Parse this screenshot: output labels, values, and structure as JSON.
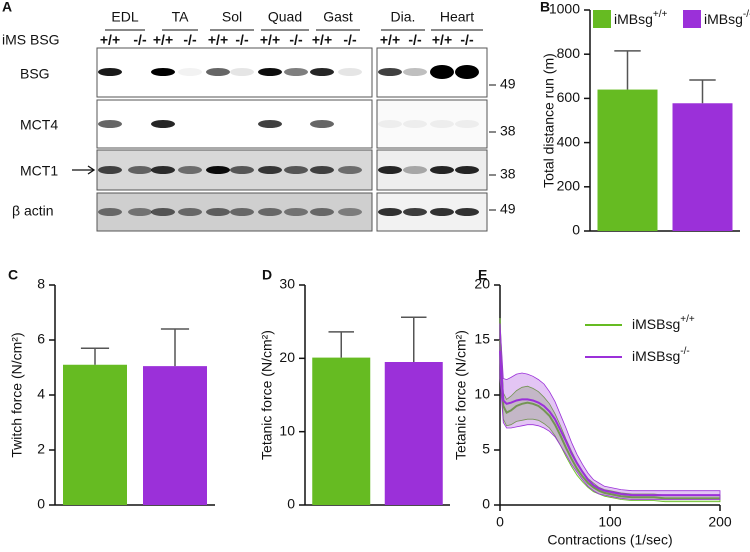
{
  "panel_labels": [
    "A",
    "B",
    "C",
    "D",
    "E"
  ],
  "blot": {
    "genotype_label": "iMS BSG",
    "genotypes": [
      "+/+",
      "-/-"
    ],
    "groups": [
      "EDL",
      "TA",
      "Sol",
      "Quad",
      "Gast",
      "Dia.",
      "Heart"
    ],
    "rows": [
      {
        "name": "BSG",
        "mw": "49"
      },
      {
        "name": "MCT4",
        "mw": "38"
      },
      {
        "name": "MCT1",
        "mw": "38"
      },
      {
        "name": "β actin",
        "mw": "49"
      }
    ]
  },
  "chart_data": [
    {
      "type": "bar",
      "ylabel": "Total distance run (m)",
      "ylim": [
        0,
        1000
      ],
      "yticks": [
        0,
        200,
        400,
        600,
        800,
        1000
      ],
      "series": [
        {
          "name": "iMBsg+/+",
          "color": "#66bb22",
          "values": [
            640
          ],
          "error": [
            175
          ]
        },
        {
          "name": "iMBsg-/-",
          "color": "#9b30d9",
          "values": [
            578
          ],
          "error": [
            105
          ]
        }
      ]
    },
    {
      "type": "bar",
      "ylabel": "Twitch force (N/cm²)",
      "ylim": [
        0,
        8
      ],
      "yticks": [
        0,
        2,
        4,
        6,
        8
      ],
      "values": [
        5.1,
        5.05
      ],
      "errors": [
        0.6,
        1.35
      ],
      "colors": [
        "#66bb22",
        "#9b30d9"
      ]
    },
    {
      "type": "bar",
      "ylabel": "Tetanic force (N/cm²)",
      "ylim": [
        0,
        30
      ],
      "yticks": [
        0,
        10,
        20,
        30
      ],
      "values": [
        20.1,
        19.5
      ],
      "errors": [
        3.5,
        6.1
      ],
      "colors": [
        "#66bb22",
        "#9b30d9"
      ]
    },
    {
      "type": "line",
      "xlabel": "Contractions (1/sec)",
      "ylabel": "Tetanic force (N/cm²)",
      "xlim": [
        0,
        200
      ],
      "xticks": [
        0,
        100,
        200
      ],
      "ylim": [
        0,
        20
      ],
      "yticks": [
        0,
        5,
        10,
        15,
        20
      ],
      "x": [
        0,
        3,
        6,
        10,
        15,
        20,
        25,
        30,
        35,
        40,
        45,
        50,
        55,
        60,
        65,
        70,
        75,
        80,
        85,
        90,
        95,
        100,
        105,
        110,
        120,
        130,
        140,
        150,
        160,
        170,
        180,
        190,
        200
      ],
      "series": [
        {
          "name": "iMSBsg+/+",
          "color": "#66bb22",
          "values": [
            15,
            9.0,
            8.4,
            8.6,
            9.0,
            9.2,
            9.3,
            9.2,
            9.0,
            8.6,
            8.1,
            7.3,
            6.3,
            5.2,
            4.2,
            3.3,
            2.6,
            2.0,
            1.6,
            1.3,
            1.1,
            1.0,
            0.9,
            0.8,
            0.7,
            0.7,
            0.7,
            0.6,
            0.6,
            0.6,
            0.6,
            0.6,
            0.6
          ],
          "error": [
            2,
            1.2,
            1.2,
            1.3,
            1.4,
            1.5,
            1.5,
            1.4,
            1.3,
            1.2,
            1.1,
            1.0,
            0.9,
            0.8,
            0.7,
            0.6,
            0.5,
            0.4,
            0.4,
            0.3,
            0.3,
            0.3,
            0.3,
            0.3,
            0.3,
            0.3,
            0.3,
            0.3,
            0.3,
            0.3,
            0.3,
            0.3,
            0.3
          ]
        },
        {
          "name": "iMSBsg-/-",
          "color": "#9b30d9",
          "values": [
            14,
            9.5,
            9.2,
            9.3,
            9.5,
            9.6,
            9.6,
            9.5,
            9.3,
            9.0,
            8.5,
            7.8,
            6.8,
            5.8,
            4.7,
            3.8,
            3.0,
            2.3,
            1.8,
            1.5,
            1.3,
            1.2,
            1.1,
            1.0,
            0.9,
            0.9,
            0.9,
            0.9,
            0.9,
            0.9,
            0.9,
            0.9,
            0.9
          ],
          "error": [
            2.5,
            2.0,
            2.2,
            2.3,
            2.4,
            2.4,
            2.3,
            2.2,
            2.1,
            2.0,
            1.8,
            1.6,
            1.4,
            1.2,
            1.0,
            0.8,
            0.7,
            0.6,
            0.5,
            0.5,
            0.4,
            0.4,
            0.4,
            0.4,
            0.4,
            0.4,
            0.4,
            0.4,
            0.4,
            0.4,
            0.4,
            0.4,
            0.4
          ]
        }
      ]
    }
  ]
}
